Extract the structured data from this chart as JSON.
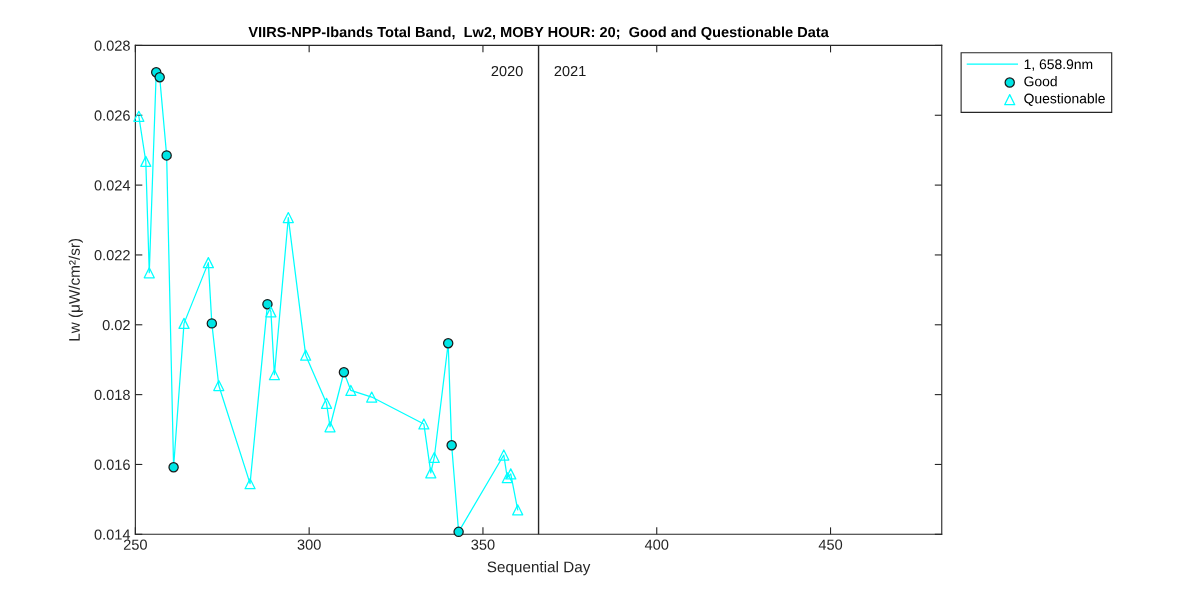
{
  "chart_data": {
    "type": "line",
    "title": "VIIRS-NPP-Ibands Total Band,  Lw2, MOBY HOUR: 20;  Good and Questionable Data",
    "xlabel": "Sequential Day",
    "ylabel": "Lw (μW/cm²/sr)",
    "xlim": [
      250,
      482
    ],
    "xticks": [
      250,
      300,
      350,
      400,
      450
    ],
    "ylim": [
      0.014,
      0.028
    ],
    "yticks": [
      0.014,
      0.016,
      0.018,
      0.02,
      0.022,
      0.024,
      0.026,
      0.028
    ],
    "legend": "top right",
    "series": [
      {
        "name": "1, 658.9nm",
        "type": "line",
        "color": "#00ffff",
        "marker": "none",
        "line_style": "solid",
        "x": [
          251,
          253,
          254,
          256,
          257,
          259,
          261,
          264,
          271,
          272,
          274,
          283,
          288,
          289,
          290,
          294,
          299,
          305,
          306,
          310,
          312,
          318,
          333,
          335,
          336,
          340,
          341,
          343,
          356,
          357,
          358,
          360
        ],
        "values": [
          0.02597,
          0.02468,
          0.02149,
          0.02723,
          0.02709,
          0.02485,
          0.01592,
          0.02004,
          0.02178,
          0.02004,
          0.01826,
          0.01545,
          0.02059,
          0.02037,
          0.01857,
          0.02307,
          0.01913,
          0.01775,
          0.01708,
          0.01864,
          0.01812,
          0.01793,
          0.01716,
          0.01576,
          0.0162,
          0.01947,
          0.01655,
          0.01407,
          0.01627,
          0.01562,
          0.01573,
          0.0147
        ]
      },
      {
        "name": "Good",
        "type": "scatter",
        "color": "#00e5e5",
        "marker": "circle",
        "x": [
          256,
          257,
          259,
          261,
          272,
          288,
          310,
          340,
          341,
          343
        ],
        "values": [
          0.02723,
          0.02709,
          0.02485,
          0.01592,
          0.02004,
          0.02059,
          0.01864,
          0.01947,
          0.01655,
          0.01407
        ]
      },
      {
        "name": "Questionable",
        "type": "scatter",
        "color": "#00ffff",
        "marker": "triangle",
        "x": [
          251,
          253,
          254,
          264,
          271,
          274,
          283,
          289,
          290,
          294,
          299,
          305,
          306,
          312,
          318,
          333,
          335,
          336,
          356,
          357,
          358,
          360
        ],
        "values": [
          0.02597,
          0.02468,
          0.02149,
          0.02004,
          0.02178,
          0.01826,
          0.01545,
          0.02037,
          0.01857,
          0.02307,
          0.01913,
          0.01775,
          0.01708,
          0.01812,
          0.01793,
          0.01716,
          0.01576,
          0.0162,
          0.01627,
          0.01562,
          0.01573,
          0.0147
        ]
      }
    ],
    "ref_lines": [
      {
        "axis": "x",
        "value": 366,
        "color": "#262626"
      }
    ],
    "annotations": [
      "2020",
      "2021"
    ]
  }
}
